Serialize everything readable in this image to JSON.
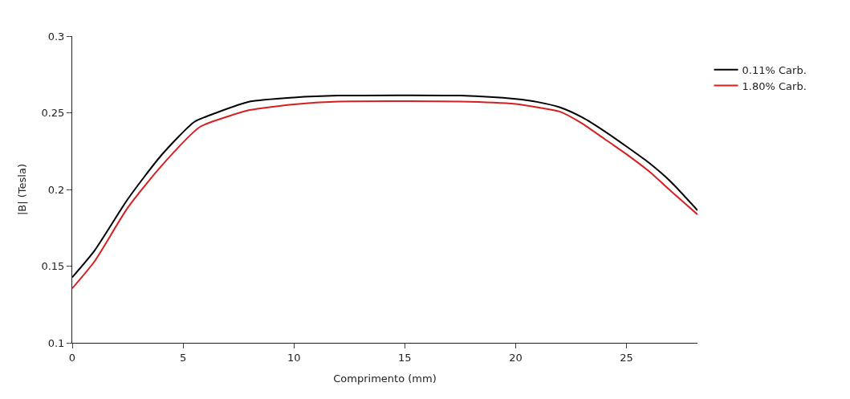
{
  "chart_data": {
    "type": "line",
    "xlabel": "Comprimento (mm)",
    "ylabel": "|B| (Tesla)",
    "xlim": [
      0,
      28.2
    ],
    "xticks": [
      0,
      5,
      10,
      15,
      20,
      25
    ],
    "ylim": [
      0.1,
      0.3
    ],
    "yticks": [
      0.1,
      0.15,
      0.2,
      0.25,
      0.3
    ],
    "legend": "top right",
    "marker": "none",
    "line_style": "solid",
    "series": [
      {
        "name": "0.11% Carb.",
        "color": "#000000",
        "x": [
          0,
          1,
          2.5,
          4,
          5.5,
          6.5,
          8,
          10,
          12,
          17.5,
          20,
          21,
          22,
          23,
          24,
          25,
          26,
          27,
          28.2
        ],
        "values": [
          0.1427,
          0.16,
          0.1936,
          0.222,
          0.244,
          0.25,
          0.2573,
          0.26,
          0.2612,
          0.2612,
          0.259,
          0.257,
          0.2535,
          0.247,
          0.238,
          0.228,
          0.2175,
          0.205,
          0.1864
        ]
      },
      {
        "name": "1.80% Carb.",
        "color": "#d42020",
        "x": [
          0,
          1,
          2.5,
          4,
          5.75,
          7,
          8,
          10,
          12,
          17.5,
          20,
          21,
          22,
          23,
          24,
          25,
          26,
          27,
          28.2
        ],
        "values": [
          0.1355,
          0.153,
          0.188,
          0.215,
          0.2407,
          0.2475,
          0.2518,
          0.2555,
          0.2573,
          0.2573,
          0.2557,
          0.2535,
          0.2507,
          0.243,
          0.233,
          0.223,
          0.212,
          0.199,
          0.1837
        ]
      }
    ]
  }
}
